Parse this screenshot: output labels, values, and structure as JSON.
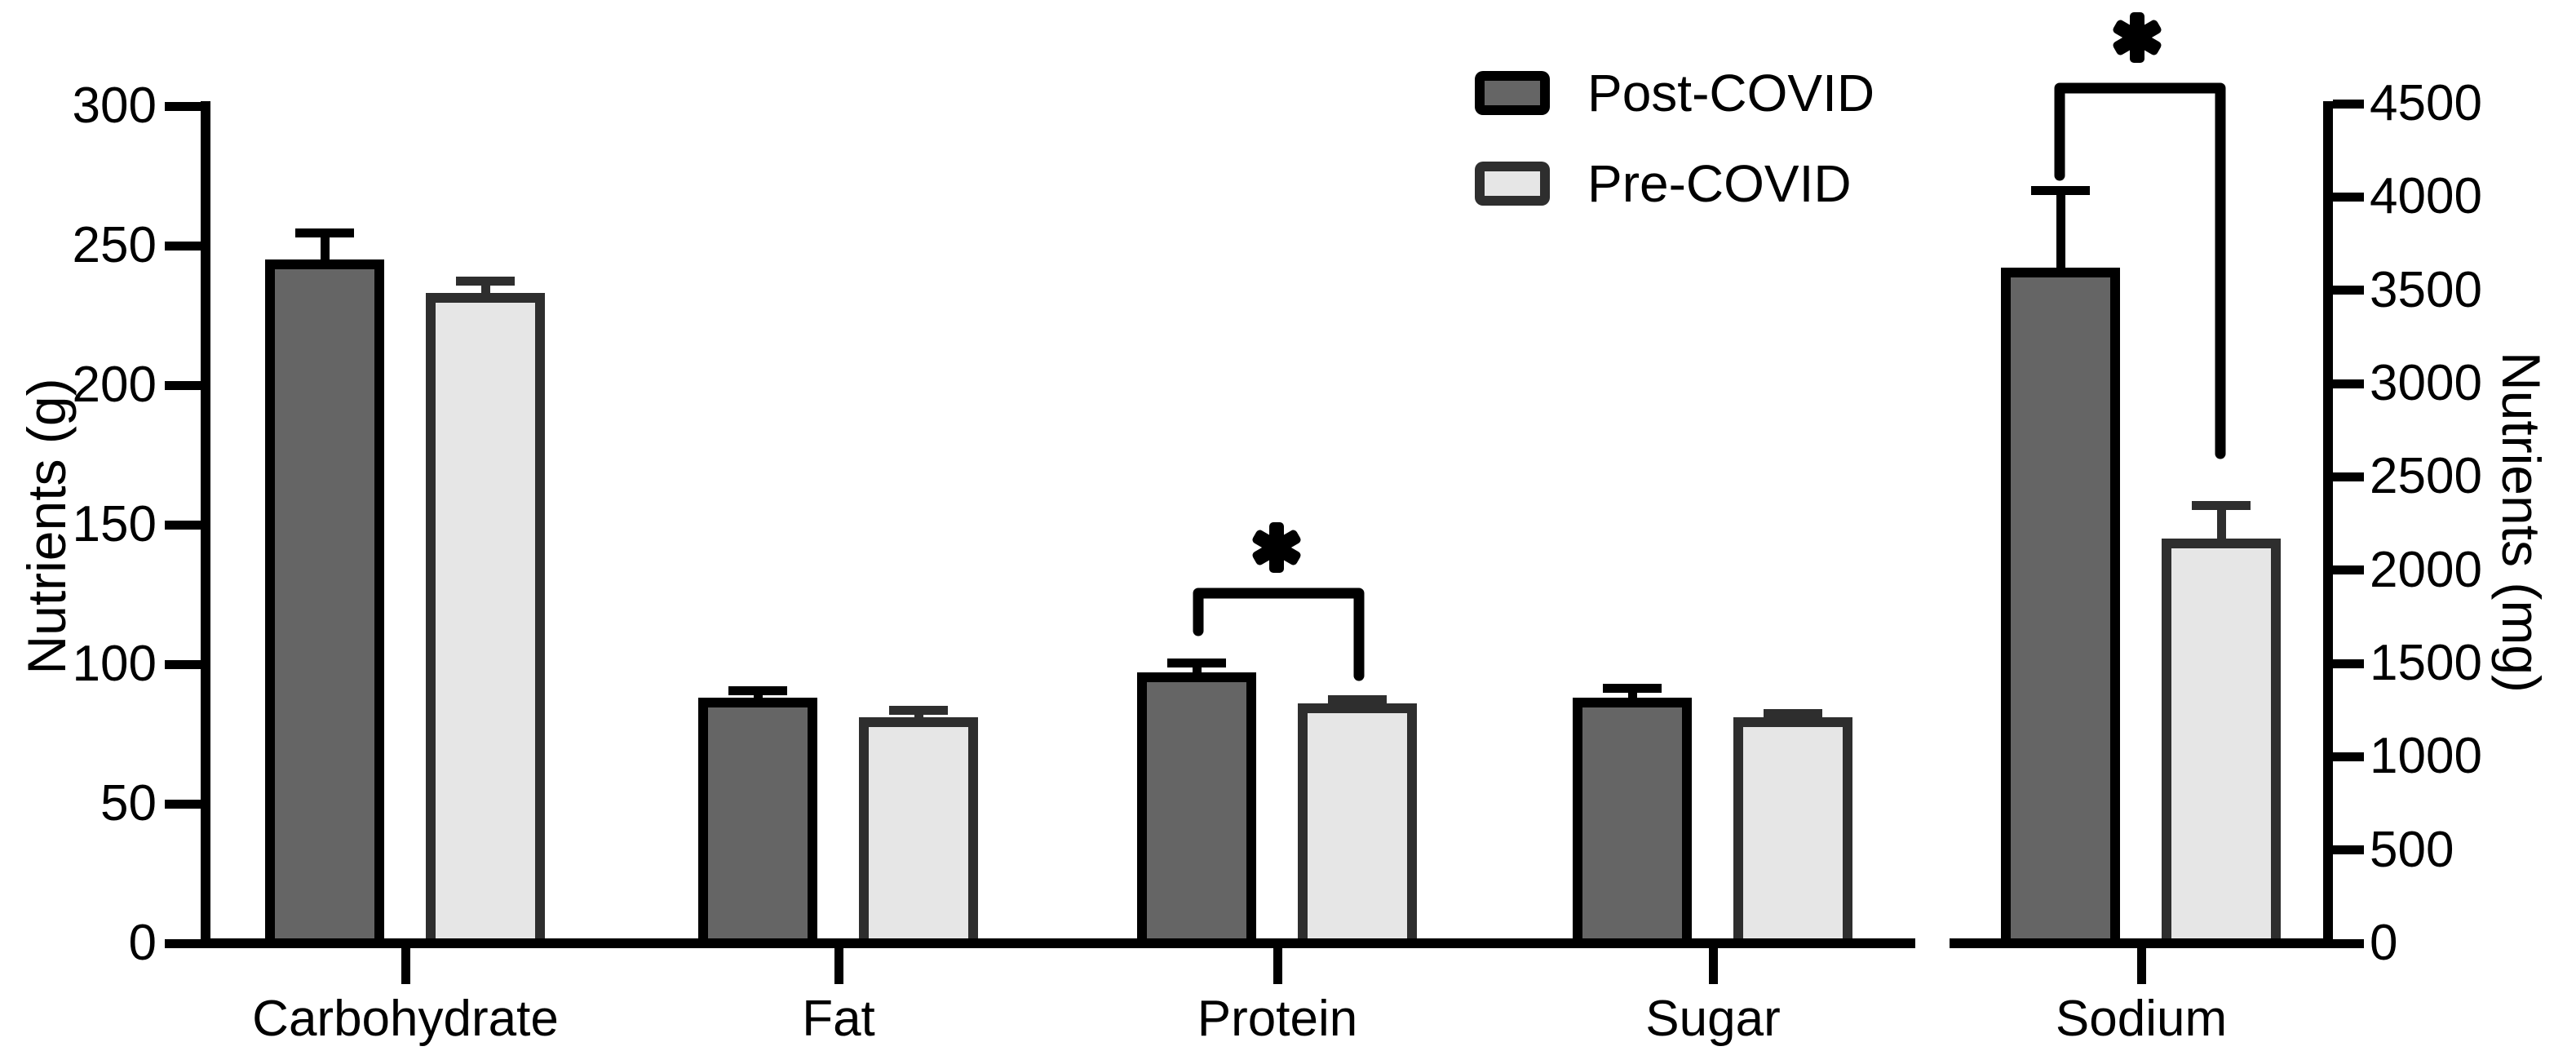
{
  "figure": {
    "background": "#ffffff"
  },
  "legend": {
    "items": [
      {
        "label": "Post-COVID",
        "fill": "#656565",
        "border": "#000000"
      },
      {
        "label": "Pre-COVID",
        "fill": "#e6e6e6",
        "border": "#2e2e2e"
      }
    ]
  },
  "chart_data": {
    "type": "bar",
    "title": "",
    "categories": [
      "Carbohydrate",
      "Fat",
      "Protein",
      "Sugar",
      "Sodium"
    ],
    "category_axis": [
      "left",
      "left",
      "left",
      "left",
      "right"
    ],
    "left_axis": {
      "label": "Nutrients (g)",
      "min": 0,
      "max": 300,
      "tick_step": 50,
      "ticks": [
        0,
        50,
        100,
        150,
        200,
        250,
        300
      ]
    },
    "right_axis": {
      "label": "Nutrients (mg)",
      "min": 0,
      "max": 4500,
      "tick_step": 500,
      "ticks": [
        0,
        500,
        1000,
        1500,
        2000,
        2500,
        3000,
        3500,
        4000,
        4500
      ]
    },
    "series": [
      {
        "name": "Post-COVID",
        "fill": "#656565",
        "border": "#000000",
        "values": [
          245,
          88,
          97,
          88,
          3620
        ],
        "error_top": [
          256,
          92,
          102,
          93,
          4060
        ]
      },
      {
        "name": "Pre-COVID",
        "fill": "#e6e6e6",
        "border": "#2e2e2e",
        "values": [
          233,
          81,
          86,
          81,
          2170
        ],
        "error_top": [
          239,
          85,
          89,
          84,
          2370
        ]
      }
    ],
    "significance": [
      {
        "category": "Protein",
        "symbol": "*",
        "between": [
          "Post-COVID",
          "Pre-COVID"
        ]
      },
      {
        "category": "Sodium",
        "symbol": "*",
        "between": [
          "Post-COVID",
          "Pre-COVID"
        ]
      }
    ],
    "grid": false,
    "legend_position": "top-right-of-left-panel",
    "error_bars": "SEM, upper only"
  }
}
